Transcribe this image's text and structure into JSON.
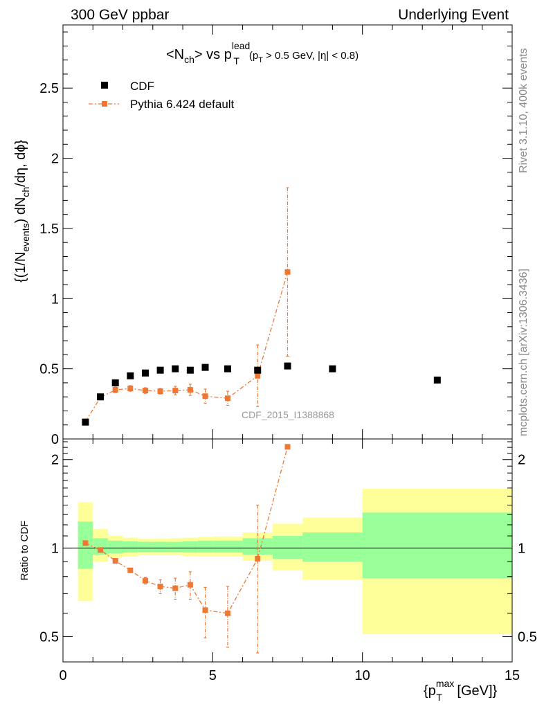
{
  "header": {
    "left": "300 GeV ppbar",
    "right": "Underlying Event"
  },
  "side_text": {
    "rivet": "Rivet 3.1.10,  400k events",
    "mcplots": "mcplots.cern.ch [arXiv:1306.3436]"
  },
  "watermark": "CDF_2015_I1388868",
  "title": {
    "prefix": "<N",
    "sub1": "ch",
    "mid": "> vs p",
    "sup": "lead",
    "sub2": "T",
    "cut_a": "(p",
    "cut_sub": "T",
    "cut_b": " > 0.5 GeV, |",
    "cut_c": "η",
    "cut_d": "| < 0.8)"
  },
  "ylabel_main": {
    "a": "{(1/N",
    "a_sub": "events",
    "b": ") dN",
    "b_sub": "ch",
    "c": "/dη, dϕ}"
  },
  "ylabel_ratio": "Ratio to CDF",
  "xlabel": {
    "a": "{p",
    "sup": "max",
    "sub": "T",
    "b": " [GeV]}"
  },
  "colors": {
    "data": "#000000",
    "mc": "#ee7733",
    "band_inner": "#99ff99",
    "band_outer": "#ffff99"
  },
  "chart_data": [
    {
      "type": "scatter",
      "panel": "main",
      "xlim": [
        0,
        15
      ],
      "ylim": [
        0,
        2.95
      ],
      "yticks": [
        0,
        0.5,
        1,
        1.5,
        2,
        2.5
      ],
      "ytick_labels": [
        "0",
        "0.5",
        "1",
        "1.5",
        "2",
        "2.5"
      ],
      "legend_placement": "top-left",
      "series": [
        {
          "name": "CDF",
          "x": [
            0.75,
            1.25,
            1.75,
            2.25,
            2.75,
            3.25,
            3.75,
            4.25,
            4.75,
            5.5,
            6.5,
            7.5,
            9.0,
            12.5
          ],
          "y": [
            0.12,
            0.3,
            0.4,
            0.45,
            0.47,
            0.49,
            0.5,
            0.49,
            0.51,
            0.5,
            0.49,
            0.52,
            0.5,
            0.42
          ]
        },
        {
          "name": "Pythia 6.424 default",
          "x": [
            0.75,
            1.25,
            1.75,
            2.25,
            2.75,
            3.25,
            3.75,
            4.25,
            4.75,
            5.5,
            6.5,
            7.5
          ],
          "y": [
            0.125,
            0.295,
            0.35,
            0.36,
            0.345,
            0.34,
            0.345,
            0.35,
            0.305,
            0.29,
            0.45,
            1.19
          ],
          "err": [
            0.01,
            0.01,
            0.02,
            0.02,
            0.02,
            0.02,
            0.03,
            0.04,
            0.05,
            0.05,
            0.22,
            0.6
          ]
        }
      ]
    },
    {
      "type": "line",
      "panel": "ratio",
      "xlim": [
        0,
        15
      ],
      "ylim": [
        0.41,
        2.35
      ],
      "yticks": [
        0.5,
        1,
        2
      ],
      "ytick_labels": [
        "0.5",
        "1",
        "2"
      ],
      "xticks": [
        0,
        5,
        10,
        15
      ],
      "xtick_labels": [
        "0",
        "5",
        "10",
        "15"
      ],
      "reference": 1,
      "bands": {
        "edges": [
          0.5,
          1.0,
          1.5,
          2.0,
          2.5,
          3.0,
          3.5,
          4.0,
          4.5,
          5.0,
          6.0,
          7.0,
          8.0,
          10.0,
          15.0
        ],
        "inner_low": [
          0.85,
          0.95,
          0.96,
          0.965,
          0.97,
          0.97,
          0.97,
          0.965,
          0.965,
          0.965,
          0.95,
          0.92,
          0.9,
          0.79
        ],
        "inner_high": [
          1.23,
          1.08,
          1.06,
          1.055,
          1.05,
          1.05,
          1.05,
          1.055,
          1.06,
          1.06,
          1.08,
          1.1,
          1.13,
          1.32
        ],
        "outer_low": [
          0.66,
          0.9,
          0.93,
          0.935,
          0.945,
          0.945,
          0.945,
          0.94,
          0.935,
          0.935,
          0.905,
          0.84,
          0.78,
          0.51
        ],
        "outer_high": [
          1.43,
          1.16,
          1.1,
          1.085,
          1.075,
          1.075,
          1.08,
          1.085,
          1.09,
          1.095,
          1.13,
          1.21,
          1.27,
          1.59
        ]
      },
      "series": [
        {
          "name": "Pythia 6.424 default",
          "x": [
            0.75,
            1.25,
            1.75,
            2.25,
            2.75,
            3.25,
            3.75,
            4.25,
            4.75,
            5.5,
            6.5,
            7.5
          ],
          "y": [
            1.04,
            0.985,
            0.905,
            0.84,
            0.775,
            0.74,
            0.73,
            0.75,
            0.615,
            0.6,
            0.92,
            2.21
          ],
          "err": [
            0.01,
            0.01,
            0.01,
            0.01,
            0.02,
            0.04,
            0.06,
            0.08,
            0.12,
            0.14,
            0.48,
            0.02
          ]
        }
      ]
    }
  ]
}
